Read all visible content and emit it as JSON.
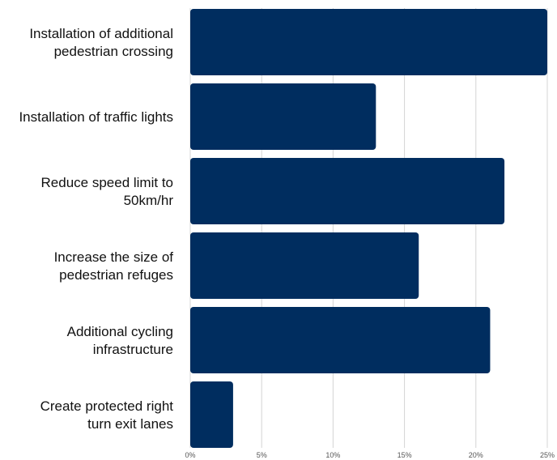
{
  "chart_data": {
    "type": "bar",
    "orientation": "horizontal",
    "title": "",
    "xlabel": "",
    "ylabel": "",
    "categories": [
      [
        "Installation of additional",
        "pedestrian crossing"
      ],
      [
        "Installation of traffic lights"
      ],
      [
        "Reduce speed limit to",
        "50km/hr"
      ],
      [
        "Increase the size of",
        "pedestrian refuges"
      ],
      [
        "Additional cycling",
        "infrastructure"
      ],
      [
        "Create protected right",
        "turn exit lanes"
      ]
    ],
    "values": [
      25,
      13,
      22,
      16,
      21,
      3
    ],
    "unit": "%",
    "xlim": [
      0,
      25
    ],
    "ticks": [
      "0%",
      "5%",
      "10%",
      "15%",
      "20%",
      "25%"
    ],
    "grid": true,
    "legend": "none",
    "colors": {
      "bar": "#002d5f",
      "grid": "#d4d4d4",
      "text": "#111111",
      "tick": "#555555"
    }
  }
}
